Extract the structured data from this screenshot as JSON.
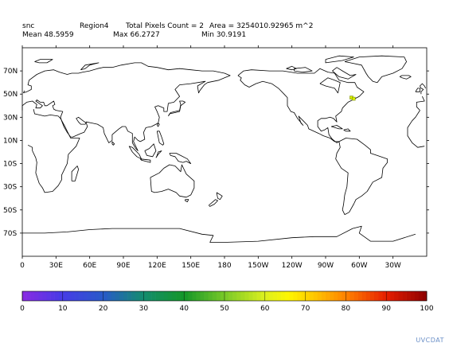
{
  "header": {
    "variable": "snc",
    "region": "Region4",
    "pixel_count": "Total Pixels Count = 2",
    "area": "Area = 3254010.92965 m^2",
    "mean": "Mean 48.5959",
    "max": "Max 66.2727",
    "min": "Min 30.9191"
  },
  "map": {
    "lat_labels": [
      "70N",
      "50N",
      "30N",
      "10N",
      "10S",
      "30S",
      "50S",
      "70S"
    ],
    "lat_values": [
      70,
      50,
      30,
      10,
      -10,
      -30,
      -50,
      -70
    ],
    "lon_labels": [
      "0",
      "30E",
      "60E",
      "90E",
      "120E",
      "150E",
      "180",
      "150W",
      "120W",
      "90W",
      "60W",
      "30W"
    ],
    "lon_values": [
      0,
      30,
      60,
      90,
      120,
      150,
      180,
      210,
      240,
      270,
      300,
      330
    ],
    "lon_range": [
      0,
      360
    ],
    "lat_range": [
      -90,
      90
    ],
    "highlight_pixels": [
      {
        "lon": 293,
        "lat": 47,
        "value": 66.2727
      },
      {
        "lon": 295,
        "lat": 46,
        "value": 30.9191
      }
    ]
  },
  "colorbar": {
    "ticks": [
      "0",
      "10",
      "20",
      "30",
      "40",
      "50",
      "60",
      "70",
      "80",
      "90",
      "100"
    ],
    "min": 0,
    "max": 100
  },
  "logo": "UVCDAT"
}
